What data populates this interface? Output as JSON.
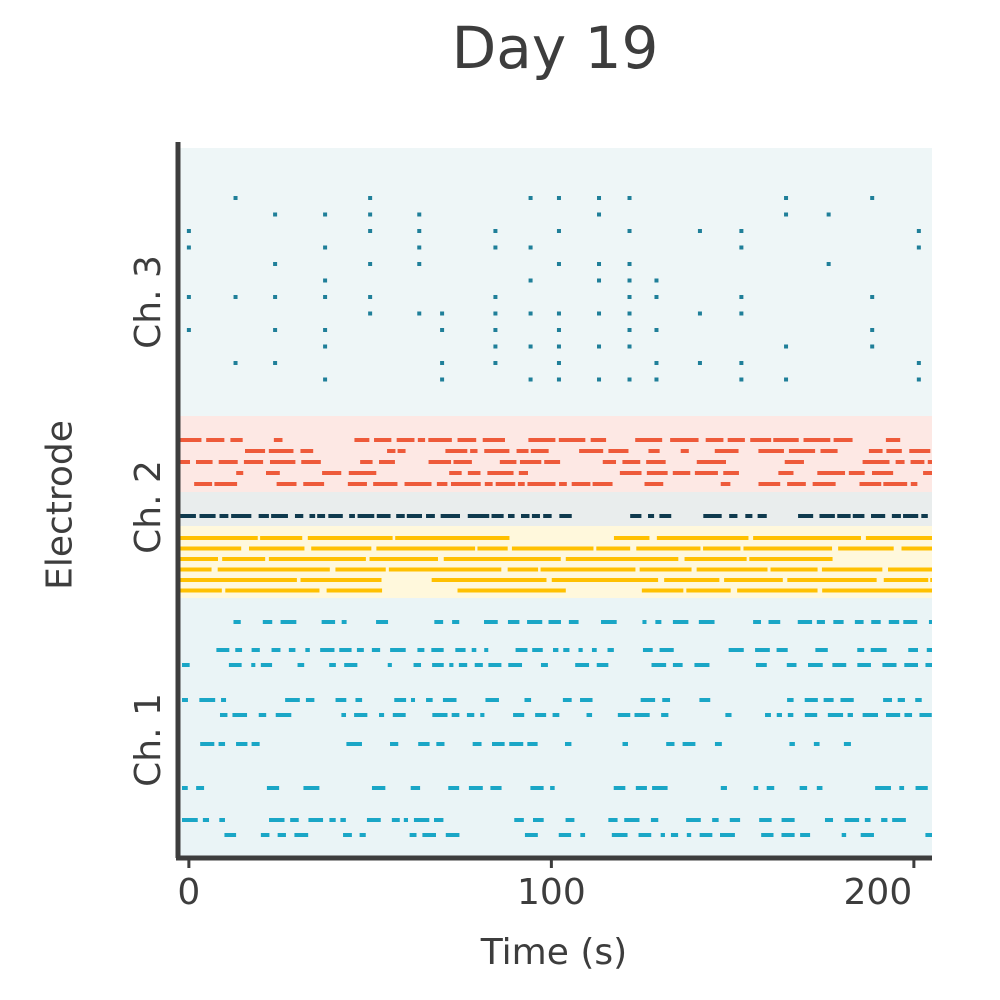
{
  "chart_data": {
    "type": "scatter",
    "title": "Day 19",
    "xlabel": "Time (s)",
    "ylabel": "Electrode",
    "xlim": [
      -3,
      205
    ],
    "xticks": [
      0,
      100,
      200
    ],
    "grid": false,
    "groups": [
      {
        "name": "Ch. 3",
        "band_color": "#eef6f7",
        "rows": 12,
        "color": "#1f7f99",
        "style": "sparse"
      },
      {
        "name": "Ch. 2",
        "bands": [
          {
            "color": "#fde8e4",
            "rows": 5,
            "dot_color": "#ee5a3a",
            "style": "dense"
          },
          {
            "color": "#e9eded",
            "rows": 1,
            "dot_color": "#0f3a4e",
            "style": "dense"
          },
          {
            "color": "#fff8dc",
            "rows": 6,
            "dot_color": "#ffc000",
            "style": "solid"
          }
        ]
      },
      {
        "name": "Ch. 1",
        "band_color": "#eaf4f6",
        "rows": 9,
        "color": "#1aa6c6",
        "style": "medium"
      }
    ],
    "colors": {
      "ch3": "#1f7f99",
      "ch2_red": "#ee5a3a",
      "ch2_dark": "#0f3a4e",
      "ch2_yellow": "#ffc000",
      "ch1": "#1aa6c6",
      "axis": "#3d3d3d"
    }
  }
}
